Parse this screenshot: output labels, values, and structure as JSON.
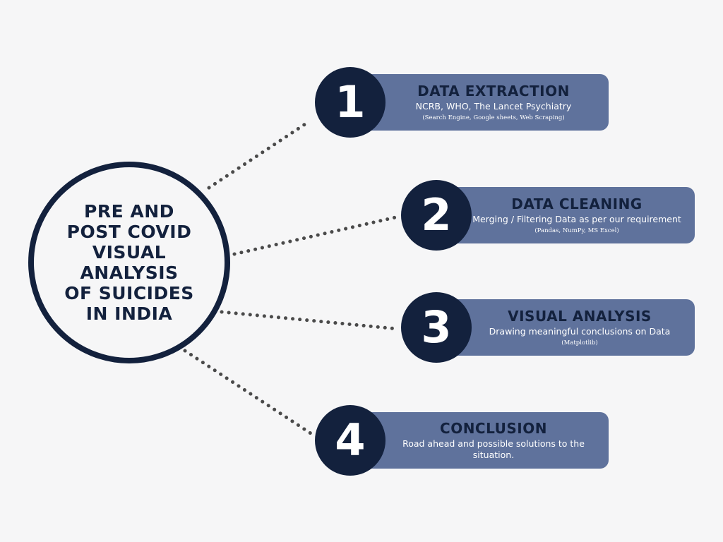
{
  "colors": {
    "background": "#f6f6f7",
    "navy": "#13213d",
    "card": "#5f729c",
    "dots": "#4a4a4a"
  },
  "hub": {
    "title": "PRE AND\nPOST COVID\nVISUAL\nANALYSIS\nOF SUICIDES\nIN INDIA"
  },
  "steps": [
    {
      "number": "1",
      "title": "DATA EXTRACTION",
      "description": "NCRB, WHO, The Lancet Psychiatry",
      "tools": "(Search Engine, Google sheets, Web Scraping)"
    },
    {
      "number": "2",
      "title": "DATA CLEANING",
      "description": "Merging / Filtering Data as per our requirement",
      "tools": "(Pandas, NumPy, MS Excel)"
    },
    {
      "number": "3",
      "title": "VISUAL ANALYSIS",
      "description": "Drawing meaningful conclusions on Data",
      "tools": "(Matplotlib)"
    },
    {
      "number": "4",
      "title": "CONCLUSION",
      "description": "Road ahead and possible solutions to the situation.",
      "tools": ""
    }
  ]
}
